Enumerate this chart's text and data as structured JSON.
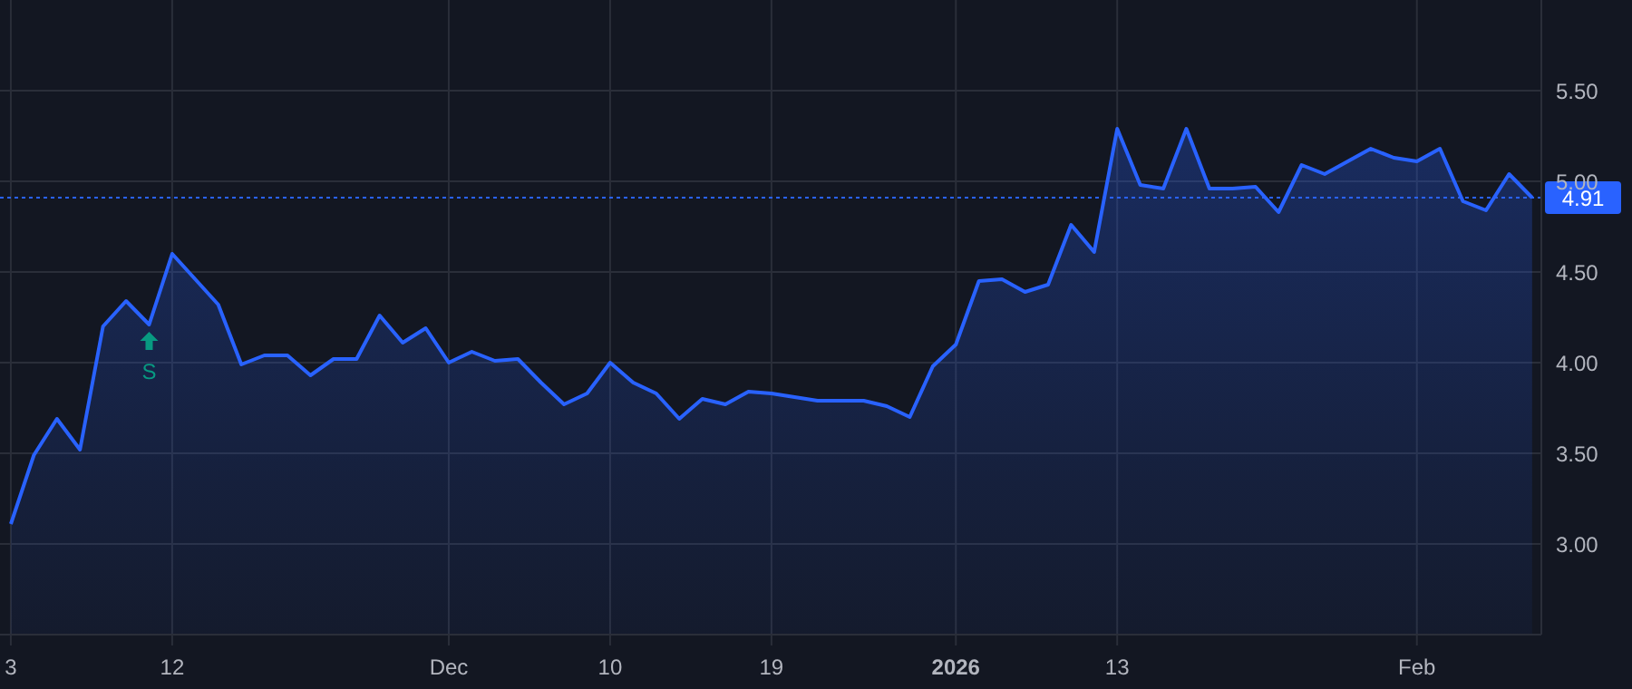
{
  "chart_data": {
    "type": "area",
    "categories": [
      "3",
      null,
      null,
      null,
      null,
      null,
      null,
      "12",
      null,
      null,
      null,
      null,
      null,
      null,
      null,
      null,
      null,
      null,
      null,
      "Dec",
      null,
      null,
      null,
      null,
      null,
      null,
      "10",
      null,
      null,
      null,
      null,
      null,
      null,
      "19",
      null,
      null,
      null,
      null,
      null,
      null,
      null,
      "2026",
      null,
      null,
      null,
      null,
      null,
      null,
      "13",
      null,
      null,
      null,
      null,
      null,
      null,
      null,
      null,
      null,
      null,
      null,
      null,
      "Feb",
      null,
      null,
      null,
      null,
      null
    ],
    "series": [
      {
        "color": "#2962ff",
        "values": [
          3.11,
          3.49,
          3.69,
          3.52,
          4.2,
          4.34,
          4.21,
          4.6,
          4.46,
          4.32,
          3.99,
          4.04,
          4.04,
          3.93,
          4.02,
          4.02,
          4.26,
          4.11,
          4.19,
          4.0,
          4.06,
          4.01,
          4.02,
          3.89,
          3.77,
          3.83,
          4.0,
          3.89,
          3.83,
          3.69,
          3.8,
          3.77,
          3.84,
          3.83,
          3.81,
          3.79,
          3.79,
          3.79,
          3.76,
          3.7,
          3.98,
          4.1,
          4.45,
          4.46,
          4.39,
          4.43,
          4.76,
          4.61,
          5.29,
          4.98,
          4.96,
          5.29,
          4.96,
          4.96,
          4.97,
          4.83,
          5.09,
          5.04,
          5.11,
          5.18,
          5.13,
          5.11,
          5.18,
          4.89,
          4.84,
          5.04,
          4.91
        ]
      }
    ],
    "ylim": [
      2.5,
      6.0
    ],
    "yticks": [
      {
        "value": 3.0,
        "label": "3.00"
      },
      {
        "value": 3.5,
        "label": "3.50"
      },
      {
        "value": 4.0,
        "label": "4.00"
      },
      {
        "value": 4.5,
        "label": "4.50"
      },
      {
        "value": 5.0,
        "label": "5.00"
      },
      {
        "value": 5.5,
        "label": "5.50"
      }
    ],
    "ref_lines": [
      {
        "axis": "y",
        "value": 4.91,
        "label": "4.91",
        "color": "#2962ff",
        "line_style": "dotted"
      }
    ],
    "annotations": [
      {
        "text": "S",
        "y": 4.21
      }
    ],
    "grid": true,
    "legend": false,
    "marker": "none",
    "line_style": "solid"
  }
}
